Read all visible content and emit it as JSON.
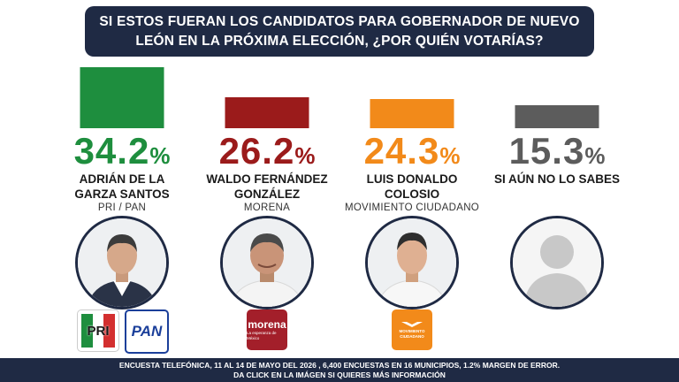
{
  "title": {
    "line1": "SI ESTOS FUERAN LOS CANDIDATOS PARA GOBERNADOR DE NUEVO",
    "line2": "LEÓN EN LA PRÓXIMA ELECCIÓN, ¿POR QUIÉN VOTARÍAS?"
  },
  "chart_data": {
    "type": "bar",
    "title": "SI ESTOS FUERAN LOS CANDIDATOS PARA GOBERNADOR DE NUEVO LEÓN EN LA PRÓXIMA ELECCIÓN, ¿POR QUIÉN VOTARÍAS?",
    "unit": "%",
    "categories": [
      "ADRIÁN DE LA GARZA SANTOS",
      "WALDO FERNÁNDEZ GONZÁLEZ",
      "LUIS DONALDO COLOSIO",
      "SI AÚN NO LO SABES"
    ],
    "values": [
      34.2,
      26.2,
      24.3,
      15.3
    ],
    "colors": [
      "#1e8e3e",
      "#9b1b1b",
      "#f28a1a",
      "#5c5c5c"
    ]
  },
  "candidates": [
    {
      "pct": "34.2",
      "pct_sign": "%",
      "name_line1": "ADRIÁN DE LA",
      "name_line2": "GARZA SANTOS",
      "party": "PRI / PAN",
      "color": "#1e8e3e",
      "photo": "candidate-photo",
      "logos": [
        {
          "text": "PRI",
          "icon": "pri-logo-icon"
        },
        {
          "text": "PAN",
          "icon": "pan-logo-icon"
        }
      ]
    },
    {
      "pct": "26.2",
      "pct_sign": "%",
      "name_line1": "WALDO FERNÁNDEZ",
      "name_line2": "GONZÁLEZ",
      "party": "MORENA",
      "color": "#9b1b1b",
      "photo": "candidate-photo",
      "logos": [
        {
          "text": "morena",
          "subtext": "La esperanza de México",
          "icon": "morena-logo-icon"
        }
      ]
    },
    {
      "pct": "24.3",
      "pct_sign": "%",
      "name_line1": "LUIS DONALDO",
      "name_line2": "COLOSIO",
      "party": "MOVIMIENTO CIUDADANO",
      "color": "#f28a1a",
      "photo": "candidate-photo",
      "logos": [
        {
          "text": "MOVIMIENTO",
          "subtext": "CIUDADANO",
          "icon": "movimiento-ciudadano-logo-icon"
        }
      ]
    },
    {
      "pct": "15.3",
      "pct_sign": "%",
      "name_line1": "SI AÚN NO LO SABES",
      "name_line2": "",
      "party": "",
      "color": "#5c5c5c",
      "photo": "placeholder-silhouette"
    }
  ],
  "footer": {
    "line1": "ENCUESTA TELEFÓNICA, 11 AL 14 DE MAYO DEL 2026 , 6,400 ENCUESTAS  EN 16 MUNICIPIOS, 1.2% MARGEN DE ERROR.",
    "line2": "DA CLICK EN LA IMÁGEN SI QUIERES MÁS INFORMACIÓN"
  }
}
